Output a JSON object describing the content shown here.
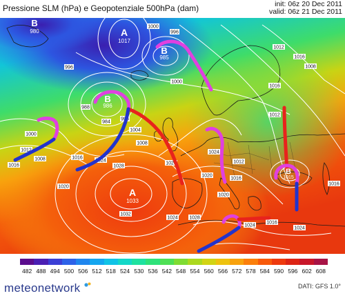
{
  "header": {
    "title": "Pressione SLM (hPa) e Geopotenziale 500hPa (dam)",
    "init": "init: 06z 20 Dec 2011",
    "valid": "valid: 06z 21 Dec 2011"
  },
  "map": {
    "highs": [
      {
        "mark": "A",
        "value": "1017"
      },
      {
        "mark": "A",
        "value": "1033"
      }
    ],
    "lows": [
      {
        "mark": "B",
        "value": "980"
      },
      {
        "mark": "B",
        "value": "985"
      },
      {
        "mark": "B",
        "value": "986"
      },
      {
        "mark": "B",
        "value": "1015"
      }
    ],
    "isobar_labels": [
      "1000",
      "996",
      "996",
      "1000",
      "1012",
      "1016",
      "988",
      "984",
      "996",
      "1004",
      "1008",
      "1000",
      "1012",
      "1016",
      "1008",
      "1016",
      "1024",
      "1028",
      "1020",
      "1020",
      "1032",
      "1024",
      "1028",
      "1020",
      "1024",
      "1016",
      "1012",
      "1020",
      "1016",
      "1012",
      "1016",
      "1024",
      "1024",
      "1008",
      "1016"
    ],
    "front_colors": {
      "warm": "#e8231c",
      "cold": "#2233cc",
      "occluded": "#e040e0"
    }
  },
  "legend": {
    "labels": [
      "482",
      "488",
      "494",
      "500",
      "506",
      "512",
      "518",
      "524",
      "530",
      "536",
      "542",
      "548",
      "554",
      "560",
      "566",
      "572",
      "578",
      "584",
      "590",
      "596",
      "602",
      "608"
    ],
    "colors": [
      "#5b0d8e",
      "#4a1fb3",
      "#3b3fd6",
      "#2d62e8",
      "#1f86ee",
      "#14a6ef",
      "#10c3e6",
      "#14d8c8",
      "#1ee2a0",
      "#2ee27a",
      "#4ee055",
      "#7fdc33",
      "#acd91f",
      "#d2d414",
      "#eec30f",
      "#f8a20d",
      "#fb7f0b",
      "#f85a0b",
      "#ee3a0e",
      "#dd2515",
      "#c8172a",
      "#a81446"
    ]
  },
  "footer": {
    "brand": "meteonetwork",
    "credit": "DATI: GFS 1.0°"
  }
}
